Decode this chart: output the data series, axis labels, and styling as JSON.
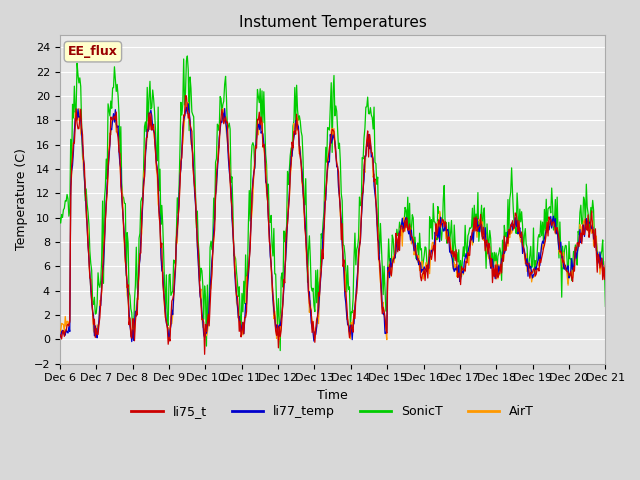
{
  "title": "Instument Temperatures",
  "xlabel": "Time",
  "ylabel": "Temperature (C)",
  "ylim": [
    -2,
    25
  ],
  "series_colors": {
    "li75_t": "#cc0000",
    "li77_temp": "#0000cc",
    "SonicT": "#00cc00",
    "AirT": "#ff9900"
  },
  "bg_color": "#e8e8e8",
  "grid_color": "#ffffff",
  "title_fontsize": 11,
  "axis_fontsize": 9,
  "tick_fontsize": 8,
  "legend_fontsize": 9,
  "annotation_text": "EE_flux",
  "annotation_bg": "#ffffcc",
  "annotation_border": "#aaaaaa",
  "annotation_text_color": "#990000",
  "x_tick_labels": [
    "Dec 6",
    "Dec 7",
    "Dec 8",
    "Dec 9",
    "Dec 10",
    "Dec 11",
    "Dec 12",
    "Dec 13",
    "Dec 14",
    "Dec 15",
    "Dec 16",
    "Dec 17",
    "Dec 18",
    "Dec 19",
    "Dec 20",
    "Dec 21"
  ]
}
